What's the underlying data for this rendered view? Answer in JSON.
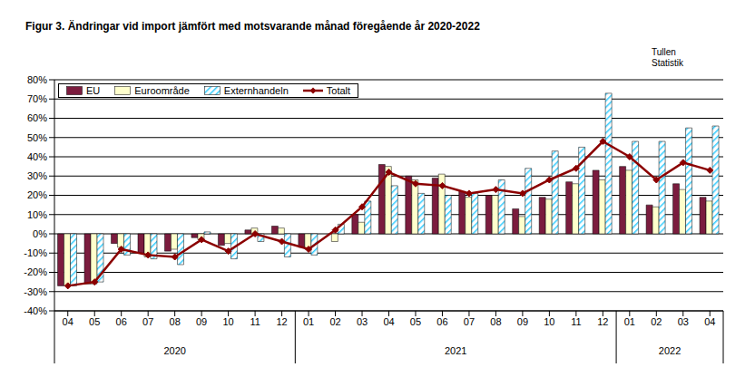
{
  "chart_data": {
    "type": "bar",
    "title": "Figur 3. Ändringar vid import jämfört med motsvarande månad föregående år 2020-2022",
    "annotation": "Tullen\nStatistik",
    "categories": [
      "04",
      "05",
      "06",
      "07",
      "08",
      "09",
      "10",
      "11",
      "12",
      "01",
      "02",
      "03",
      "04",
      "05",
      "06",
      "07",
      "08",
      "09",
      "10",
      "11",
      "12",
      "01",
      "02",
      "03",
      "04"
    ],
    "groups": [
      {
        "label": "2020",
        "count": 9
      },
      {
        "label": "2021",
        "count": 12
      },
      {
        "label": "2022",
        "count": 4
      }
    ],
    "series": [
      {
        "name": "EU",
        "type": "bar",
        "color": "#7b1c3e",
        "values": [
          -27,
          -26,
          -5,
          -10,
          -9,
          -2,
          -6,
          2,
          4,
          -7,
          0,
          10,
          36,
          30,
          29,
          22,
          20,
          13,
          19,
          27,
          33,
          35,
          15,
          26,
          19
        ]
      },
      {
        "name": "Euroområde",
        "type": "bar",
        "color": "#ffffcc",
        "values": [
          -27,
          -26,
          -7,
          -12,
          -8,
          -3,
          -5,
          3,
          3,
          -8,
          -4,
          6,
          35,
          28,
          31,
          19,
          20,
          9,
          18,
          26,
          28,
          33,
          14,
          23,
          17
        ]
      },
      {
        "name": "Externhandeln",
        "type": "bar",
        "color": "#33ccff",
        "values": [
          -27,
          -25,
          -11,
          -13,
          -16,
          1,
          -13,
          -4,
          -12,
          -11,
          5,
          17,
          25,
          21,
          20,
          21,
          28,
          34,
          43,
          45,
          73,
          48,
          48,
          55,
          56
        ]
      },
      {
        "name": "Totalt",
        "type": "line",
        "color": "#8b0000",
        "marker": "diamond",
        "values": [
          -27,
          -25,
          -8,
          -11,
          -12,
          -3,
          -9,
          0,
          -4,
          -8,
          2,
          14,
          32,
          26,
          25,
          21,
          23,
          21,
          28,
          34,
          48,
          40,
          28,
          37,
          33
        ]
      }
    ],
    "ylim": [
      -40,
      80
    ],
    "yticks": [
      {
        "value": -40,
        "label": "-40%"
      },
      {
        "value": -30,
        "label": "-30%"
      },
      {
        "value": -20,
        "label": "-20%"
      },
      {
        "value": -10,
        "label": "-10%"
      },
      {
        "value": 0,
        "label": "0%"
      },
      {
        "value": 10,
        "label": "10%"
      },
      {
        "value": 20,
        "label": "20%"
      },
      {
        "value": 30,
        "label": "30%"
      },
      {
        "value": 40,
        "label": "40%"
      },
      {
        "value": 50,
        "label": "50%"
      },
      {
        "value": 60,
        "label": "60%"
      },
      {
        "value": 70,
        "label": "70%"
      },
      {
        "value": 80,
        "label": "80%"
      }
    ],
    "grid": true,
    "legend": "upper left"
  }
}
